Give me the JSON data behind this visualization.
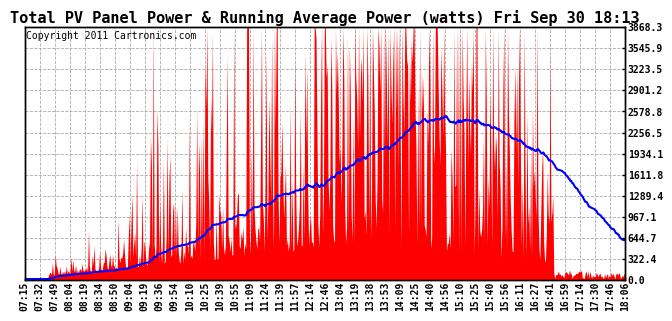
{
  "title": "Total PV Panel Power & Running Average Power (watts) Fri Sep 30 18:13",
  "copyright": "Copyright 2011 Cartronics.com",
  "ymax": 3868.3,
  "ymin": 0.0,
  "yticks": [
    0.0,
    322.4,
    644.7,
    967.1,
    1289.4,
    1611.8,
    1934.1,
    2256.5,
    2578.8,
    2901.2,
    3223.5,
    3545.9,
    3868.3
  ],
  "xtick_labels": [
    "07:15",
    "07:32",
    "07:49",
    "08:04",
    "08:19",
    "08:34",
    "08:50",
    "09:04",
    "09:19",
    "09:36",
    "09:54",
    "10:10",
    "10:25",
    "10:39",
    "10:55",
    "11:09",
    "11:24",
    "11:39",
    "11:57",
    "12:14",
    "12:46",
    "13:04",
    "13:19",
    "13:38",
    "13:53",
    "14:09",
    "14:25",
    "14:40",
    "14:56",
    "15:10",
    "15:25",
    "15:40",
    "15:56",
    "16:11",
    "16:27",
    "16:41",
    "16:59",
    "17:14",
    "17:30",
    "17:46",
    "18:06"
  ],
  "background_color": "#ffffff",
  "grid_color": "#aaaaaa",
  "bar_color": "#ff0000",
  "line_color": "#0000ff",
  "title_fontsize": 11,
  "copyright_fontsize": 7,
  "tick_fontsize": 7,
  "border_color": "#000000"
}
